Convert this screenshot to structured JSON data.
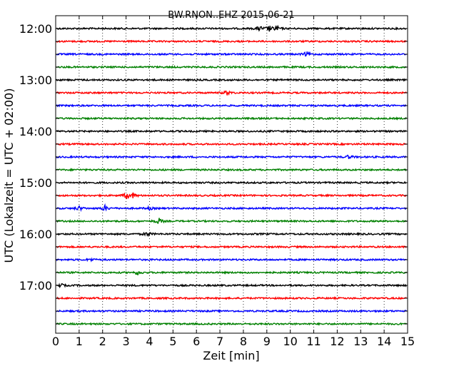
{
  "chart_data": {
    "type": "line",
    "title": "BW.RNON..EHZ 2015-06-21",
    "xlabel": "Zeit  [min]",
    "ylabel": "UTC (Lokalzeit = UTC + 02:00)",
    "xlim": [
      0,
      15
    ],
    "x_ticks": [
      "0",
      "1",
      "2",
      "3",
      "4",
      "5",
      "6",
      "7",
      "8",
      "9",
      "10",
      "11",
      "12",
      "13",
      "14",
      "15"
    ],
    "y_tick_labels": [
      "12:00",
      "13:00",
      "14:00",
      "15:00",
      "16:00",
      "17:00"
    ],
    "grid": "vertical dotted at each minute",
    "trace_colors": [
      "#000000",
      "#ff0000",
      "#0000ff",
      "#008000"
    ],
    "traces": [
      {
        "start": "12:00",
        "events": [
          {
            "t": 8.7,
            "amp": 0.25
          },
          {
            "t": 9.1,
            "amp": 0.3
          },
          {
            "t": 9.4,
            "amp": 0.28
          }
        ]
      },
      {
        "start": "12:15",
        "events": []
      },
      {
        "start": "12:30",
        "events": [
          {
            "t": 10.7,
            "amp": 0.22
          }
        ]
      },
      {
        "start": "12:45",
        "events": []
      },
      {
        "start": "13:00",
        "events": []
      },
      {
        "start": "13:15",
        "events": [
          {
            "t": 7.3,
            "amp": 0.22
          }
        ]
      },
      {
        "start": "13:30",
        "events": []
      },
      {
        "start": "13:45",
        "events": []
      },
      {
        "start": "14:00",
        "events": []
      },
      {
        "start": "14:15",
        "events": []
      },
      {
        "start": "14:30",
        "events": [
          {
            "t": 12.5,
            "amp": 0.18
          }
        ]
      },
      {
        "start": "14:45",
        "events": []
      },
      {
        "start": "15:00",
        "events": []
      },
      {
        "start": "15:15",
        "events": [
          {
            "t": 3.05,
            "amp": 0.35
          },
          {
            "t": 3.3,
            "amp": 0.22
          }
        ]
      },
      {
        "start": "15:30",
        "events": [
          {
            "t": 1.0,
            "amp": 0.2
          },
          {
            "t": 2.1,
            "amp": 0.25
          },
          {
            "t": 4.0,
            "amp": 0.12
          }
        ]
      },
      {
        "start": "15:45",
        "events": [
          {
            "t": 4.4,
            "amp": 0.28
          }
        ]
      },
      {
        "start": "16:00",
        "events": [
          {
            "t": 3.9,
            "amp": 0.2
          }
        ]
      },
      {
        "start": "16:15",
        "events": []
      },
      {
        "start": "16:30",
        "events": [
          {
            "t": 1.5,
            "amp": 0.12
          }
        ]
      },
      {
        "start": "16:45",
        "events": [
          {
            "t": 3.5,
            "amp": 0.2
          }
        ]
      },
      {
        "start": "17:00",
        "events": [
          {
            "t": 0.2,
            "amp": 0.18
          }
        ]
      },
      {
        "start": "17:15",
        "events": []
      },
      {
        "start": "17:30",
        "events": []
      },
      {
        "start": "17:45",
        "events": []
      }
    ]
  }
}
